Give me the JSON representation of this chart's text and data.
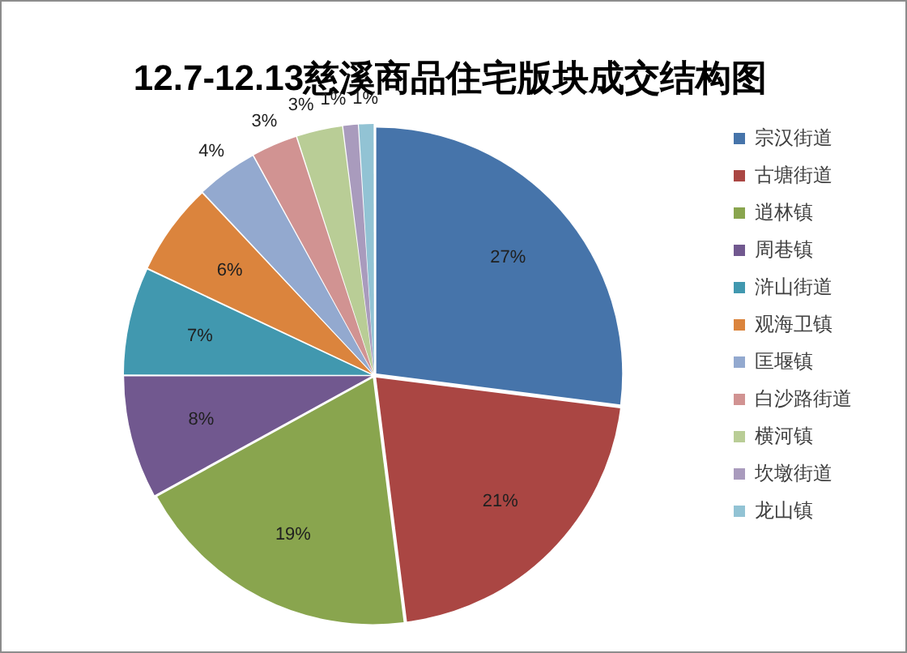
{
  "chart_data": {
    "type": "pie",
    "title": "12.7-12.13慈溪商品住宅版块成交结构图",
    "categories": [
      "宗汉街道",
      "古塘街道",
      "逍林镇",
      "周巷镇",
      "浒山街道",
      "观海卫镇",
      "匡堰镇",
      "白沙路街道",
      "横河镇",
      "坎墩街道",
      "龙山镇"
    ],
    "values": [
      27,
      21,
      19,
      8,
      7,
      6,
      4,
      3,
      3,
      1,
      1
    ],
    "colors": [
      "#4674aa",
      "#aa4643",
      "#89a54e",
      "#71588f",
      "#4198af",
      "#db843d",
      "#93a9cf",
      "#d19392",
      "#b9cd96",
      "#a99bbd",
      "#92c3d4"
    ],
    "value_labels": [
      "27%",
      "21%",
      "19%",
      "8%",
      "7%",
      "6%",
      "4%",
      "3%",
      "3%",
      "1%",
      "1%"
    ],
    "legend": "right"
  }
}
